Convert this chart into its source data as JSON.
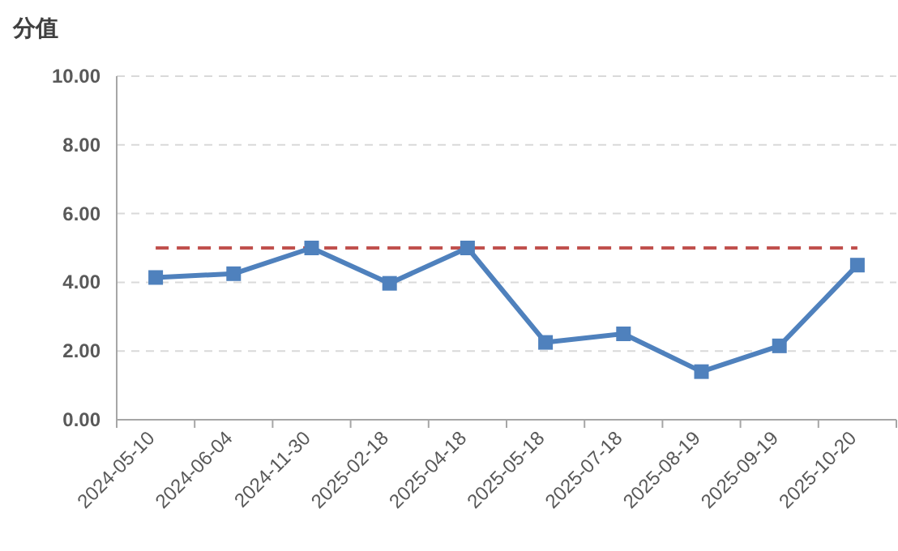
{
  "chart_data": {
    "type": "line",
    "ylabel": "分值",
    "categories": [
      "2024-05-10",
      "2024-06-04",
      "2024-11-30",
      "2025-02-18",
      "2025-04-18",
      "2025-05-18",
      "2025-07-18",
      "2025-08-19",
      "2025-09-19",
      "2025-10-20"
    ],
    "series": [
      {
        "color": "#4f81bd",
        "values": [
          4.14,
          4.25,
          5.0,
          3.97,
          5.0,
          2.25,
          2.5,
          1.4,
          2.15,
          4.5
        ]
      }
    ],
    "ylim": [
      0,
      10
    ],
    "yticks": [
      {
        "value": 0,
        "label": "0.00"
      },
      {
        "value": 2,
        "label": "2.00"
      },
      {
        "value": 4,
        "label": "4.00"
      },
      {
        "value": 6,
        "label": "6.00"
      },
      {
        "value": 8,
        "label": "8.00"
      },
      {
        "value": 10,
        "label": "10.00"
      }
    ],
    "ref_lines": [
      {
        "axis": "y",
        "value": 5,
        "color": "#c0504d",
        "line_style": "dashed"
      }
    ],
    "grid": "y",
    "marker": "square",
    "line_style": "solid"
  }
}
